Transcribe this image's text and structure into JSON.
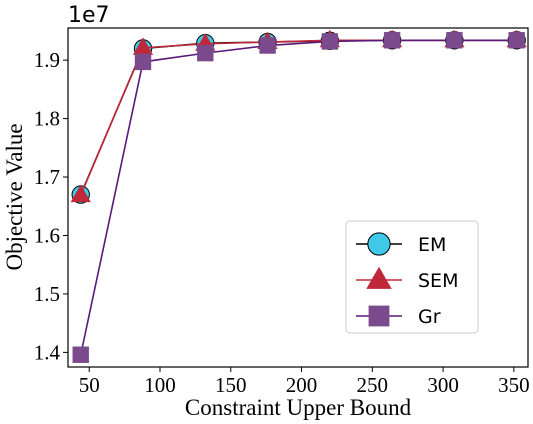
{
  "chart_data": {
    "type": "line",
    "xlabel": "Constraint Upper Bound",
    "ylabel": "Objective Value",
    "y_scale_label": "1e7",
    "xlim": [
      35,
      360
    ],
    "ylim": [
      1.375,
      1.955
    ],
    "x_ticks": [
      50,
      100,
      150,
      200,
      250,
      300,
      350
    ],
    "y_ticks": [
      1.4,
      1.5,
      1.6,
      1.7,
      1.8,
      1.9
    ],
    "x_tick_labels": [
      "50",
      "100",
      "150",
      "200",
      "250",
      "300",
      "350"
    ],
    "y_tick_labels": [
      "1.4",
      "1.5",
      "1.6",
      "1.7",
      "1.8",
      "1.9"
    ],
    "grid": false,
    "legend_position": "center-right",
    "x": [
      44,
      88,
      132,
      176,
      220,
      264,
      308,
      352
    ],
    "series": [
      {
        "name": "EM",
        "marker": "circle",
        "line_color": "#000000",
        "marker_color": "#40c8e8",
        "values": [
          1.67,
          1.92,
          1.929,
          1.931,
          1.933,
          1.934,
          1.934,
          1.934
        ]
      },
      {
        "name": "SEM",
        "marker": "triangle",
        "line_color": "#c0283a",
        "marker_color": "#c0283a",
        "values": [
          1.669,
          1.921,
          1.928,
          1.931,
          1.934,
          1.934,
          1.934,
          1.934
        ]
      },
      {
        "name": "Gr",
        "marker": "square",
        "line_color": "#5a1a78",
        "marker_color": "#7a4a8c",
        "values": [
          1.396,
          1.897,
          1.912,
          1.925,
          1.932,
          1.934,
          1.934,
          1.934
        ]
      }
    ]
  }
}
